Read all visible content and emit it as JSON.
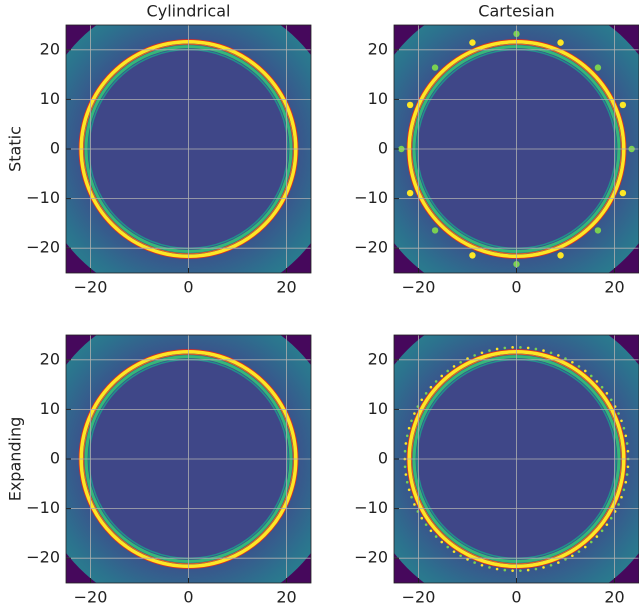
{
  "chart_data": [
    {
      "type": "image",
      "title": "Cylindrical",
      "ylabel": "Static",
      "xlim": [
        -25,
        25
      ],
      "ylim": [
        -25,
        25
      ],
      "xticks": [
        {
          "value": -20,
          "label": "−20"
        },
        0,
        20
      ],
      "yticks": [
        {
          "value": -20,
          "label": "−20"
        },
        {
          "value": -10,
          "label": "−10"
        },
        0,
        10,
        20
      ],
      "grid": true
    },
    {
      "type": "image",
      "title": "Cartesian",
      "xlim": [
        -25,
        25
      ],
      "ylim": [
        -25,
        25
      ],
      "xticks": [
        {
          "value": -20,
          "label": "−20"
        },
        0,
        20
      ],
      "yticks": [
        {
          "value": -20,
          "label": "−20"
        },
        {
          "value": -10,
          "label": "−10"
        },
        0,
        10,
        20
      ],
      "grid": true
    },
    {
      "type": "image",
      "ylabel": "Expanding",
      "xlim": [
        -25,
        25
      ],
      "ylim": [
        -25,
        25
      ],
      "xticks": [
        {
          "value": -20,
          "label": "−20"
        },
        0,
        20
      ],
      "yticks": [
        {
          "value": -20,
          "label": "−20"
        },
        {
          "value": -10,
          "label": "−10"
        },
        0,
        10,
        20
      ],
      "grid": true
    },
    {
      "type": "image",
      "xlim": [
        -25,
        25
      ],
      "ylim": [
        -25,
        25
      ],
      "xticks": [
        {
          "value": -20,
          "label": "−20"
        },
        0,
        20
      ],
      "yticks": [
        {
          "value": -20,
          "label": "−20"
        },
        {
          "value": -10,
          "label": "−10"
        },
        0,
        10,
        20
      ],
      "grid": true
    }
  ]
}
